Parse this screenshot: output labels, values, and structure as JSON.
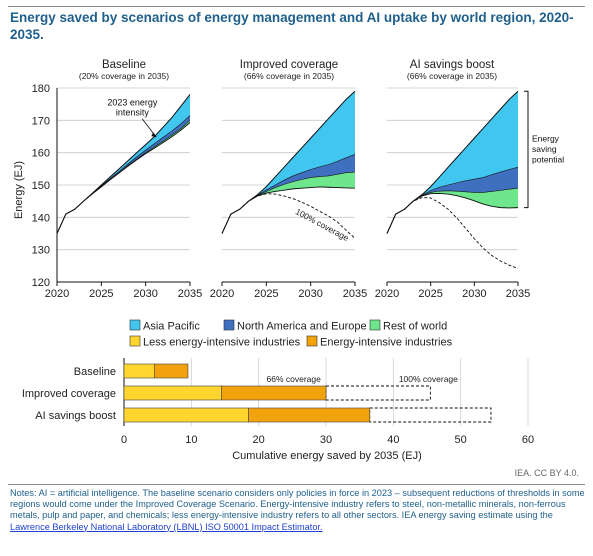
{
  "title": "Energy saved by scenarios of energy management and AI uptake by world region, 2020-2035.",
  "credit": "IEA. CC BY 4.0.",
  "notes": {
    "text": "Notes: AI = artificial intelligence. The baseline scenario considers only policies in force in 2023 – subsequent reductions of thresholds in some regions would come under the Improved Coverage Scenario. Energy-intensive industry refers to steel, non-metallic minerals, non-ferrous metals, pulp and paper, and chemicals; less energy-intensive industry refers to all other sectors. IEA energy saving estimate using the ",
    "link": "Lawrence Berkeley National Laboratory (LBNL) ISO 50001 Impact Estimator."
  },
  "colors": {
    "asia_pacific": "#41c6f0",
    "north_america_europe": "#3f6fbf",
    "rest_of_world": "#6ee68c",
    "less_intensive": "#ffd52e",
    "intensive": "#f2a20c",
    "title": "#1f5f8b"
  },
  "chart_data": [
    {
      "type": "area",
      "ylabel": "Energy (EJ)",
      "ylim": [
        120,
        180
      ],
      "yticks": [
        120,
        130,
        140,
        150,
        160,
        170,
        180
      ],
      "xticks": [
        2020,
        2025,
        2030,
        2035
      ],
      "grid": true,
      "legend": {
        "placement": "bottom",
        "entries": [
          "Asia Pacific",
          "North America and Europe",
          "Rest of world"
        ]
      },
      "panels": [
        {
          "name": "Baseline",
          "subtitle": "(20% coverage in 2035)",
          "x": [
            2020,
            2021,
            2022,
            2023,
            2024,
            2025,
            2026,
            2027,
            2028,
            2029,
            2030,
            2031,
            2032,
            2033,
            2034,
            2035
          ],
          "total": [
            135,
            141,
            142.5,
            145,
            147.5,
            150,
            152.5,
            155,
            157.5,
            160,
            162.5,
            165,
            168,
            171,
            174.5,
            178
          ],
          "after_asia_pacific": [
            135,
            141,
            142.5,
            145,
            147.4,
            149.7,
            152,
            154.2,
            156.5,
            158.7,
            160.8,
            162.8,
            164.8,
            166.8,
            169,
            171.5
          ],
          "after_north_america_europe": [
            135,
            141,
            142.5,
            145,
            147.3,
            149.5,
            151.7,
            153.8,
            156,
            158,
            160,
            161.8,
            163.6,
            165.5,
            167.5,
            170
          ],
          "after_rest_of_world": [
            135,
            141,
            142.5,
            145,
            147.3,
            149.4,
            151.6,
            153.7,
            155.8,
            157.8,
            159.7,
            161.4,
            163.2,
            165,
            167,
            169.3
          ],
          "annotations": [
            {
              "text": [
                "2023 energy",
                "intensity"
              ],
              "x": 2031.2,
              "y": 164.8
            }
          ]
        },
        {
          "name": "Improved coverage",
          "subtitle": "(66% coverage in 2035)",
          "x": [
            2020,
            2021,
            2022,
            2023,
            2024,
            2025,
            2026,
            2027,
            2028,
            2029,
            2030,
            2031,
            2032,
            2033,
            2034,
            2035
          ],
          "total": [
            135,
            141,
            142.5,
            145,
            147,
            149.5,
            152.5,
            155.5,
            158.5,
            161.5,
            164.5,
            167.5,
            170.5,
            173.5,
            176.5,
            179
          ],
          "after_asia_pacific": [
            135,
            141,
            142.5,
            145,
            146.8,
            148.5,
            150,
            151.5,
            152.8,
            153.8,
            154.8,
            155.6,
            156.3,
            157.3,
            158.4,
            159.5
          ],
          "after_north_america_europe": [
            135,
            141,
            142.5,
            145,
            146.7,
            148,
            149.2,
            150.2,
            151,
            151.7,
            152.3,
            152.6,
            152.8,
            153.3,
            153.8,
            154
          ],
          "after_rest_of_world": [
            135,
            141,
            142.5,
            145,
            146.6,
            147.5,
            148,
            148.4,
            148.8,
            149,
            149.2,
            149.4,
            149.3,
            149.2,
            149.1,
            149
          ],
          "full_coverage": [
            135,
            141,
            142.5,
            145,
            146.6,
            147.3,
            147.2,
            146.6,
            145.8,
            144.7,
            143.4,
            141.9,
            140.4,
            138.6,
            136,
            133.5
          ],
          "annotations": [
            {
              "text": [
                "100% coverage"
              ],
              "x": 2028.2,
              "y": 141.2
            }
          ]
        },
        {
          "name": "AI savings boost",
          "subtitle": "(66% coverage in 2035)",
          "x": [
            2020,
            2021,
            2022,
            2023,
            2024,
            2025,
            2026,
            2027,
            2028,
            2029,
            2030,
            2031,
            2032,
            2033,
            2034,
            2035
          ],
          "total": [
            135,
            141,
            142.5,
            145,
            147,
            149.5,
            152.5,
            155.5,
            158.5,
            161.5,
            164.5,
            167.5,
            170.5,
            173.5,
            176.5,
            179
          ],
          "after_asia_pacific": [
            135,
            141,
            142.5,
            145,
            146.8,
            148.3,
            149.3,
            150,
            150.7,
            151.3,
            151.8,
            152.3,
            153.2,
            154,
            154.8,
            155.5
          ],
          "after_north_america_europe": [
            135,
            141,
            142.5,
            145,
            146.7,
            147.7,
            148.1,
            148.2,
            148.1,
            147.9,
            147.7,
            147.7,
            148,
            148.3,
            148.7,
            149
          ],
          "after_rest_of_world": [
            135,
            141,
            142.5,
            145,
            146.6,
            147.3,
            147.4,
            147.2,
            146.7,
            146,
            145.1,
            144.1,
            143.4,
            143,
            142.9,
            143
          ],
          "full_coverage": [
            135,
            141,
            142.5,
            145,
            146.1,
            146,
            144.5,
            142.5,
            139.8,
            136.6,
            133.4,
            130.5,
            128.2,
            126.5,
            125.2,
            124.2
          ],
          "bracket": {
            "text": [
              "Energy",
              "saving",
              "potential"
            ],
            "ymin": 143,
            "ymax": 179
          }
        }
      ]
    },
    {
      "type": "bar",
      "orientation": "horizontal",
      "stacked": true,
      "xlabel": "Cumulative energy saved by 2035 (EJ)",
      "xlim": [
        0,
        60
      ],
      "xticks": [
        0,
        10,
        20,
        30,
        40,
        50,
        60
      ],
      "categories": [
        "Baseline",
        "Improved coverage",
        "AI savings boost"
      ],
      "series": [
        {
          "name": "Less energy-intensive industries",
          "values": [
            4.5,
            14.5,
            18.5
          ]
        },
        {
          "name": "Energy-intensive industries",
          "values": [
            5,
            15.5,
            18
          ]
        }
      ],
      "full_coverage_totals": [
        null,
        45.5,
        54.5
      ],
      "labels": [
        {
          "text": "66% coverage",
          "x": 25.5
        },
        {
          "text": "100% coverage",
          "x": 45.5
        }
      ],
      "legend": {
        "placement": "top"
      }
    }
  ]
}
